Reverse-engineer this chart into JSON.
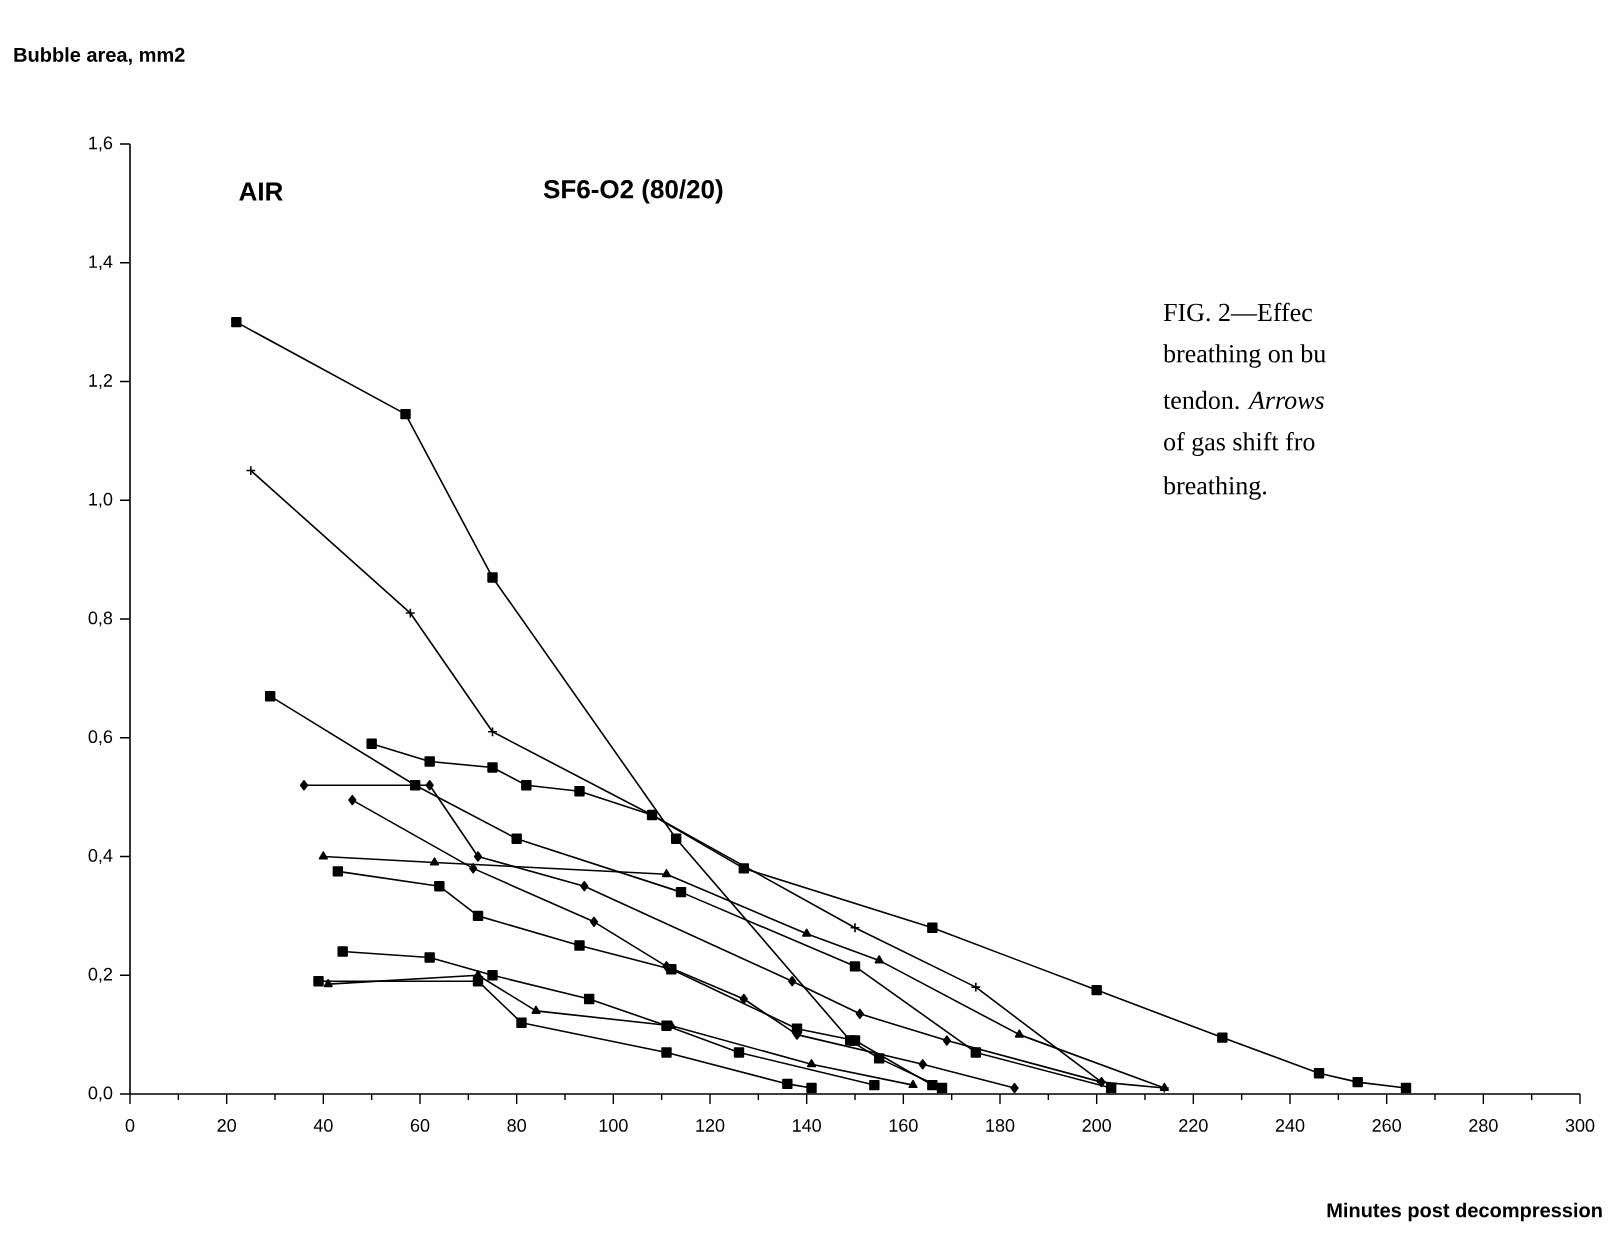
{
  "chart_data": {
    "type": "line",
    "xlabel": "Minutes post decompression",
    "ylabel": "Bubble area, mm2",
    "annotations": [
      "AIR",
      "SF6-O2 (80/20)",
      "FIG.   2—Effec",
      "breathing on bu",
      "tendon. *Arrows*",
      "of gas shift fro",
      "breathing."
    ],
    "xlim": [
      0,
      300
    ],
    "ylim": [
      0,
      1.6
    ],
    "xticks": [
      0,
      20,
      40,
      60,
      80,
      100,
      120,
      140,
      160,
      180,
      200,
      220,
      240,
      260,
      280,
      300
    ],
    "yticks": [
      {
        "value": 0,
        "label": "0,0"
      },
      {
        "value": 0.2,
        "label": "0,2"
      },
      {
        "value": 0.4,
        "label": "0,4"
      },
      {
        "value": 0.6,
        "label": "0,6"
      },
      {
        "value": 0.8,
        "label": "0,8"
      },
      {
        "value": 1.0,
        "label": "1,0"
      },
      {
        "value": 1.2,
        "label": "1,2"
      },
      {
        "value": 1.4,
        "label": "1,4"
      },
      {
        "value": 1.6,
        "label": "1,6"
      }
    ],
    "grid": false,
    "line_style": "solid",
    "series": [
      {
        "color": "#000000",
        "marker": "square",
        "x": [
          22,
          57,
          75,
          113,
          149,
          155,
          168
        ],
        "values": [
          1.3,
          1.145,
          0.87,
          0.43,
          0.09,
          0.06,
          0.01
        ]
      },
      {
        "color": "#000000",
        "marker": "cross",
        "x": [
          25,
          58,
          75,
          108,
          150,
          175,
          201,
          214
        ],
        "values": [
          1.05,
          0.81,
          0.61,
          0.47,
          0.28,
          0.18,
          0.02,
          0.01
        ]
      },
      {
        "color": "#000000",
        "marker": "square",
        "x": [
          29,
          59,
          80,
          114,
          150,
          175,
          203
        ],
        "values": [
          0.67,
          0.52,
          0.43,
          0.34,
          0.215,
          0.07,
          0.01
        ]
      },
      {
        "color": "#000000",
        "marker": "square",
        "x": [
          50,
          62,
          75,
          82,
          93,
          108,
          127,
          166,
          200,
          226,
          246,
          254,
          264
        ],
        "values": [
          0.59,
          0.56,
          0.55,
          0.52,
          0.51,
          0.47,
          0.38,
          0.28,
          0.175,
          0.095,
          0.035,
          0.02,
          0.01
        ]
      },
      {
        "color": "#000000",
        "marker": "diamond",
        "x": [
          36,
          62,
          72,
          94,
          137,
          151,
          169,
          201
        ],
        "values": [
          0.52,
          0.52,
          0.4,
          0.35,
          0.19,
          0.135,
          0.09,
          0.02
        ]
      },
      {
        "color": "#000000",
        "marker": "diamond",
        "x": [
          46,
          71,
          96,
          111,
          127,
          138,
          164,
          183
        ],
        "values": [
          0.495,
          0.38,
          0.29,
          0.215,
          0.16,
          0.1,
          0.05,
          0.01
        ]
      },
      {
        "color": "#000000",
        "marker": "triangle",
        "x": [
          40,
          63,
          111,
          140,
          155,
          184,
          214
        ],
        "values": [
          0.4,
          0.39,
          0.37,
          0.27,
          0.225,
          0.1,
          0.01
        ]
      },
      {
        "color": "#000000",
        "marker": "square",
        "x": [
          43,
          64,
          72,
          93,
          112,
          138,
          150,
          166
        ],
        "values": [
          0.375,
          0.35,
          0.3,
          0.25,
          0.21,
          0.11,
          0.09,
          0.015
        ]
      },
      {
        "color": "#000000",
        "marker": "square",
        "x": [
          44,
          62,
          75,
          95,
          111,
          126,
          154
        ],
        "values": [
          0.24,
          0.23,
          0.2,
          0.16,
          0.115,
          0.07,
          0.015
        ]
      },
      {
        "color": "#000000",
        "marker": "square",
        "x": [
          39,
          72,
          81,
          111,
          136,
          141
        ],
        "values": [
          0.19,
          0.19,
          0.12,
          0.07,
          0.017,
          0.01
        ]
      },
      {
        "color": "#000000",
        "marker": "triangle",
        "x": [
          41,
          72,
          84,
          112,
          141,
          162
        ],
        "values": [
          0.185,
          0.2,
          0.14,
          0.115,
          0.05,
          0.015
        ]
      }
    ]
  }
}
